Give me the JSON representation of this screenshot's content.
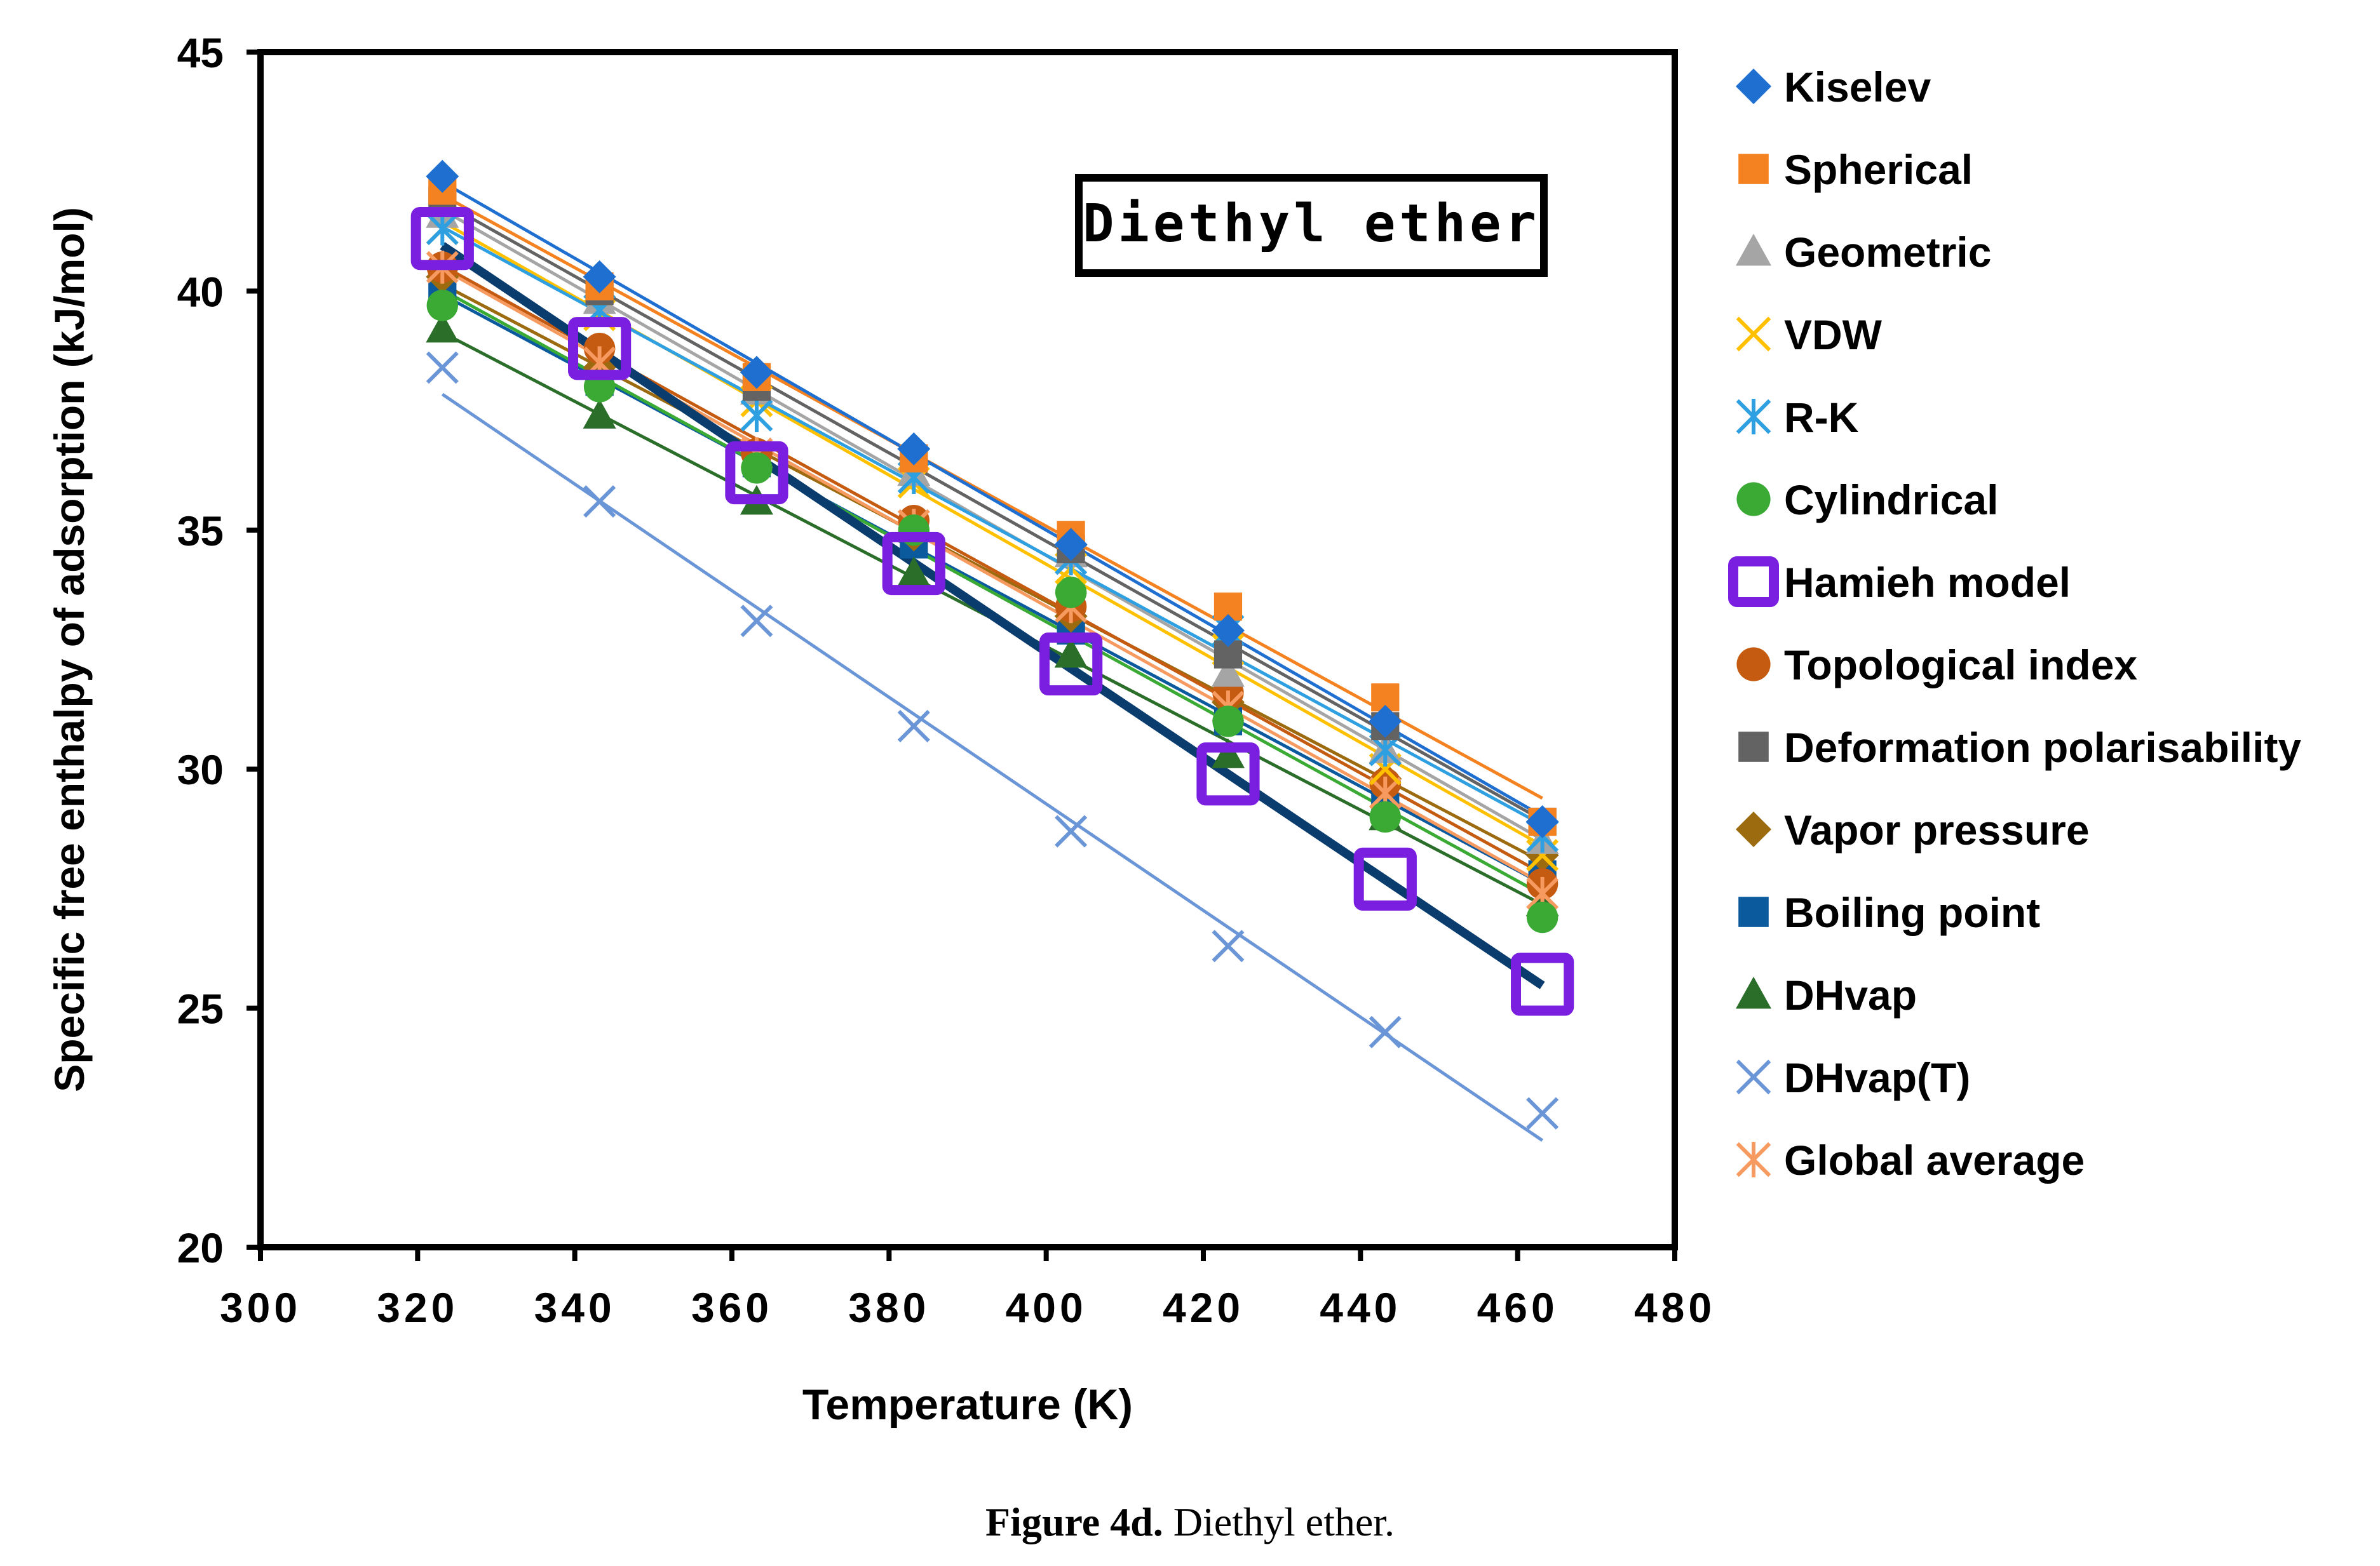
{
  "chart_data": {
    "type": "scatter",
    "title": "Diethyl ether",
    "xlabel": "Temperature (K)",
    "ylabel": "Specific free enthalpy of adsorption (kJ/mol)",
    "xlim": [
      300,
      480
    ],
    "ylim": [
      20,
      45
    ],
    "xticks": [
      "300",
      "320",
      "340",
      "360",
      "380",
      "400",
      "420",
      "440",
      "460",
      "480"
    ],
    "yticks": [
      "20",
      "25",
      "30",
      "35",
      "40",
      "45"
    ],
    "x": [
      323.15,
      343.15,
      363.15,
      383.15,
      403.15,
      423.15,
      443.15,
      463.15
    ],
    "legend_position": "right",
    "series": [
      {
        "name": "Kiselev",
        "marker": "diamond",
        "color": "#1f6fd1",
        "values": [
          42.4,
          40.3,
          38.3,
          36.7,
          34.7,
          32.9,
          31.0,
          28.9
        ]
      },
      {
        "name": "Spherical",
        "marker": "square",
        "color": "#f58220",
        "values": [
          42.1,
          40.1,
          38.2,
          36.5,
          34.9,
          33.4,
          31.5,
          28.9
        ]
      },
      {
        "name": "Geometric",
        "marker": "triangle",
        "color": "#a5a5a5",
        "values": [
          41.6,
          39.8,
          37.9,
          36.2,
          34.5,
          32.0,
          30.4,
          28.5
        ]
      },
      {
        "name": "VDW",
        "marker": "x",
        "color": "#ffc000",
        "values": [
          41.3,
          39.5,
          37.7,
          36.0,
          34.2,
          32.5,
          30.0,
          28.2
        ]
      },
      {
        "name": "R-K",
        "marker": "asterisk",
        "color": "#2e9fe0",
        "values": [
          41.3,
          39.6,
          37.4,
          36.1,
          34.4,
          32.9,
          30.4,
          28.6
        ]
      },
      {
        "name": "Cylindrical",
        "marker": "circle",
        "color": "#3aaa35",
        "values": [
          39.7,
          38.0,
          36.3,
          35.0,
          33.7,
          31.0,
          29.0,
          26.9
        ]
      },
      {
        "name": "Hamieh model",
        "marker": "hollow-square",
        "color": "#7a1fe0",
        "values": [
          41.1,
          38.8,
          36.2,
          34.3,
          32.2,
          29.9,
          27.7,
          25.5
        ]
      },
      {
        "name": "Topological index",
        "marker": "circle",
        "color": "#c55a11",
        "values": [
          40.5,
          38.8,
          36.6,
          35.2,
          33.4,
          31.6,
          29.7,
          27.6
        ]
      },
      {
        "name": "Deformation polarisability",
        "marker": "square",
        "color": "#636363",
        "values": [
          41.9,
          40.0,
          38.0,
          36.5,
          34.6,
          32.4,
          30.9,
          28.9
        ]
      },
      {
        "name": "Vapor pressure",
        "marker": "diamond",
        "color": "#9c6a0f",
        "values": [
          40.3,
          38.4,
          36.6,
          34.9,
          33.2,
          31.4,
          29.8,
          28.2
        ]
      },
      {
        "name": "Boiling point",
        "marker": "square",
        "color": "#0b5a9e",
        "values": [
          40.0,
          38.1,
          36.4,
          34.7,
          32.9,
          31.0,
          29.2,
          27.8
        ]
      },
      {
        "name": "DHvap",
        "marker": "triangle",
        "color": "#2b6e2a",
        "values": [
          39.2,
          37.4,
          35.6,
          34.1,
          32.4,
          30.3,
          29.0,
          27.2
        ]
      },
      {
        "name": "DHvap(T)",
        "marker": "x",
        "color": "#6a95d6",
        "values": [
          38.4,
          35.6,
          33.1,
          30.9,
          28.7,
          26.3,
          24.5,
          22.8
        ]
      },
      {
        "name": "Global average",
        "marker": "asterisk",
        "color": "#f79a60",
        "values": [
          40.5,
          38.5,
          36.6,
          35.1,
          33.4,
          31.3,
          29.5,
          27.4
        ]
      }
    ]
  },
  "caption": {
    "label": "Figure 4d.",
    "text": " Diethyl ether."
  }
}
